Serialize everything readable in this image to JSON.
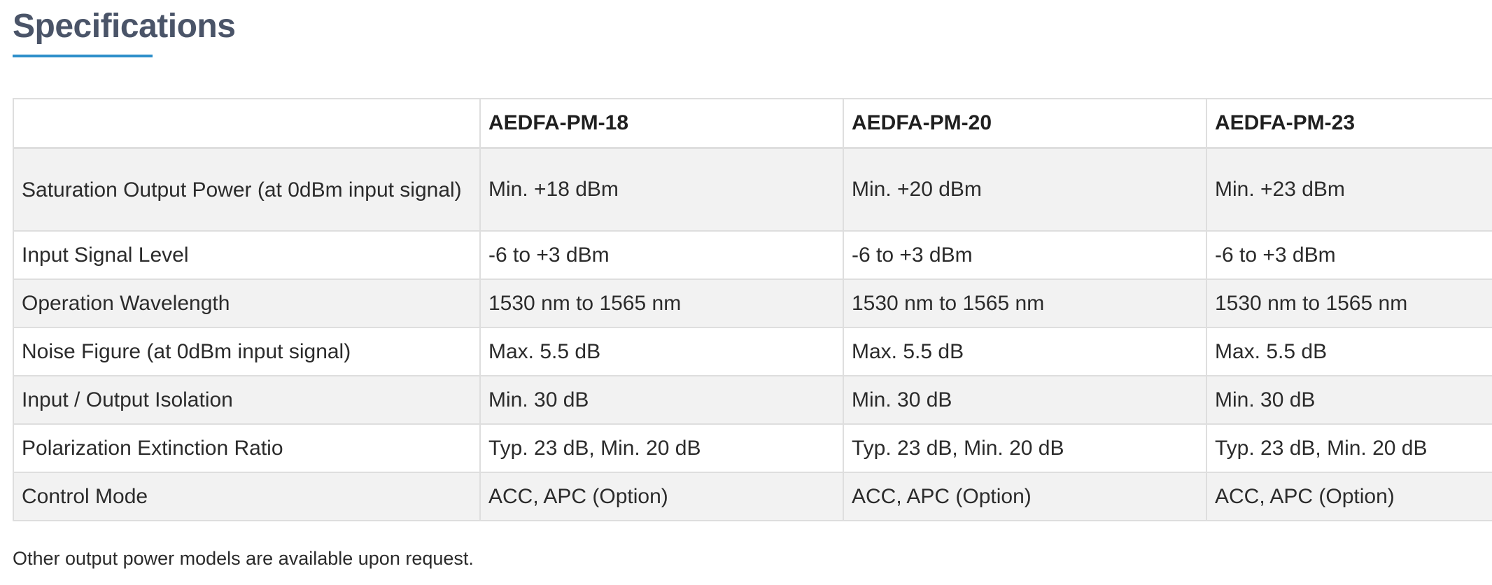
{
  "page": {
    "title": "Specifications",
    "footnote": "Other output power models are available upon request."
  },
  "table": {
    "headers": [
      "",
      "AEDFA-PM-18",
      "AEDFA-PM-20",
      "AEDFA-PM-23"
    ],
    "rows": [
      {
        "label": "Saturation Output Power (at 0dBm input signal)",
        "values": [
          "Min. +18 dBm",
          "Min. +20 dBm",
          "Min. +23 dBm"
        ]
      },
      {
        "label": "Input Signal Level",
        "values": [
          "-6 to +3 dBm",
          "-6 to +3 dBm",
          "-6 to +3 dBm"
        ]
      },
      {
        "label": "Operation Wavelength",
        "values": [
          "1530 nm to 1565 nm",
          "1530 nm to 1565 nm",
          "1530 nm to 1565 nm"
        ]
      },
      {
        "label": "Noise Figure (at 0dBm input signal)",
        "values": [
          "Max. 5.5 dB",
          "Max. 5.5 dB",
          "Max. 5.5 dB"
        ]
      },
      {
        "label": "Input / Output Isolation",
        "values": [
          "Min. 30 dB",
          "Min. 30 dB",
          "Min. 30 dB"
        ]
      },
      {
        "label": "Polarization Extinction Ratio",
        "values": [
          "Typ. 23 dB, Min. 20 dB",
          "Typ. 23 dB, Min. 20 dB",
          "Typ. 23 dB, Min. 20 dB"
        ]
      },
      {
        "label": "Control Mode",
        "values": [
          "ACC, APC (Option)",
          "ACC, APC (Option)",
          "ACC, APC (Option)"
        ]
      }
    ]
  },
  "colors": {
    "title": "#4a5468",
    "accent": "#2e8fca",
    "row_shade": "#f2f2f2",
    "border": "#dedede"
  }
}
